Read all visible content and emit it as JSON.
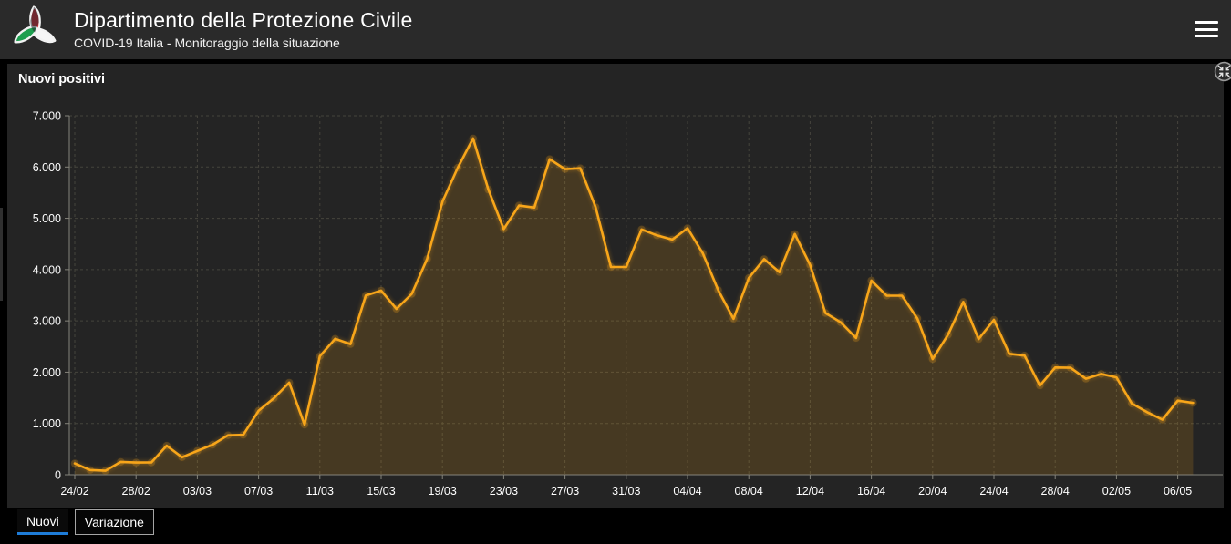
{
  "header": {
    "title": "Dipartimento della Protezione Civile",
    "subtitle": "COVID-19 Italia - Monitoraggio della situazione"
  },
  "panel": {
    "title": "Nuovi positivi"
  },
  "icons": {
    "logo": "protezione-civile-triskelion",
    "menu": "hamburger-menu",
    "collapse": "collapse-arrows"
  },
  "tabs": [
    {
      "label": "Nuovi",
      "active": true
    },
    {
      "label": "Variazione",
      "active": false
    }
  ],
  "colors": {
    "header_bg": "#2a2a2a",
    "panel_bg": "#242424",
    "accent": "#f8a61a",
    "accent_fill": "rgba(248,166,26,0.16)",
    "grid": "#45443c",
    "axis": "#85847b",
    "text": "#ffffff",
    "tab_active_underline": "#1e7cd8",
    "logo_green": "#1e9e4f",
    "logo_red": "#d22b35",
    "logo_white": "#f5f5f5"
  },
  "chart_data": {
    "type": "area",
    "title": "Nuovi positivi",
    "legend": "none",
    "grid": "dashed",
    "ylim": [
      0,
      7000
    ],
    "y_tick_values": [
      0,
      1000,
      2000,
      3000,
      4000,
      5000,
      6000,
      7000
    ],
    "y_tick_labels": [
      "0",
      "1.000",
      "2.000",
      "3.000",
      "4.000",
      "5.000",
      "6.000",
      "7.000"
    ],
    "x_tick_interval": 4,
    "x_tick_labels": [
      "24/02",
      "28/02",
      "03/03",
      "07/03",
      "11/03",
      "15/03",
      "19/03",
      "23/03",
      "27/03",
      "31/03",
      "04/04",
      "08/04",
      "12/04",
      "16/04",
      "20/04",
      "24/04",
      "28/04",
      "02/05",
      "06/05"
    ],
    "x_dates": [
      "24/02",
      "25/02",
      "26/02",
      "27/02",
      "28/02",
      "29/02",
      "01/03",
      "02/03",
      "03/03",
      "04/03",
      "05/03",
      "06/03",
      "07/03",
      "08/03",
      "09/03",
      "10/03",
      "11/03",
      "12/03",
      "13/03",
      "14/03",
      "15/03",
      "16/03",
      "17/03",
      "18/03",
      "19/03",
      "20/03",
      "21/03",
      "22/03",
      "23/03",
      "24/03",
      "25/03",
      "26/03",
      "27/03",
      "28/03",
      "29/03",
      "30/03",
      "31/03",
      "01/04",
      "02/04",
      "03/04",
      "04/04",
      "05/04",
      "06/04",
      "07/04",
      "08/04",
      "09/04",
      "10/04",
      "11/04",
      "12/04",
      "13/04",
      "14/04",
      "15/04",
      "16/04",
      "17/04",
      "18/04",
      "19/04",
      "20/04",
      "21/04",
      "22/04",
      "23/04",
      "24/04",
      "25/04",
      "26/04",
      "27/04",
      "28/04",
      "29/04",
      "30/04",
      "01/05",
      "02/05",
      "03/05",
      "04/05",
      "05/05",
      "06/05",
      "07/05"
    ],
    "values": [
      221,
      93,
      78,
      250,
      238,
      240,
      566,
      342,
      466,
      587,
      769,
      778,
      1247,
      1492,
      1797,
      977,
      2313,
      2651,
      2547,
      3497,
      3590,
      3233,
      3526,
      4207,
      5322,
      5986,
      6557,
      5560,
      4789,
      5249,
      5210,
      6153,
      5959,
      5974,
      5217,
      4050,
      4053,
      4782,
      4668,
      4585,
      4805,
      4316,
      3599,
      3039,
      3836,
      4204,
      3951,
      4694,
      4092,
      3153,
      2972,
      2667,
      3786,
      3493,
      3491,
      3047,
      2256,
      2729,
      3370,
      2646,
      3021,
      2357,
      2324,
      1739,
      2091,
      2086,
      1872,
      1965,
      1900,
      1389,
      1221,
      1075,
      1444,
      1401
    ]
  }
}
